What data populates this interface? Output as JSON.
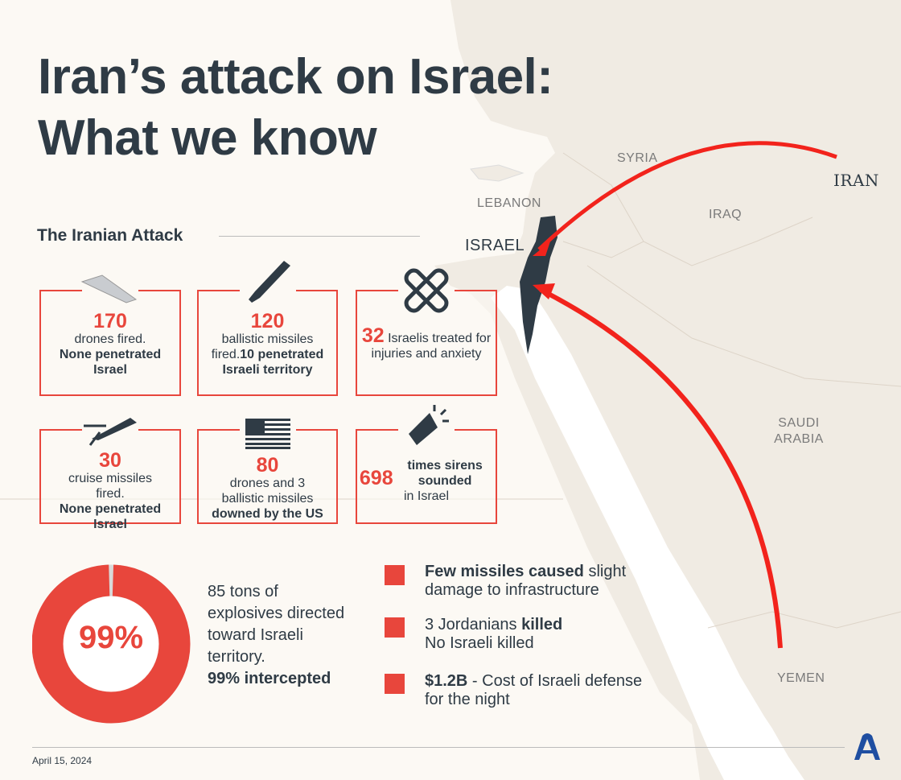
{
  "title": {
    "line1": "Iran’s attack on Israel:",
    "line2": "What we know"
  },
  "section_title": "The Iranian Attack",
  "map_labels": {
    "syria": "SYRIA",
    "lebanon": "LEBANON",
    "israel": "ISRAEL",
    "iraq": "IRAQ",
    "iran": "IRAN",
    "saudi1": "SAUDI",
    "saudi2": "ARABIA",
    "yemen": "YEMEN"
  },
  "cards": [
    {
      "icon": "drone-icon",
      "number": "170",
      "text1": "drones fired.",
      "bold": "None penetrated Israel"
    },
    {
      "icon": "ballistic-missile-icon",
      "number": "120",
      "text1": "ballistic missiles fired.",
      "bold": "10 penetrated Israeli territory"
    },
    {
      "icon": "bandage-icon",
      "number": "32",
      "text1": "Israelis treated for injuries and anxiety"
    },
    {
      "icon": "cruise-missile-icon",
      "number": "30",
      "text1": "cruise missiles fired. ",
      "bold": "None penetrated Israel"
    },
    {
      "icon": "us-flag-icon",
      "number": "80",
      "text1": "drones and 3 ballistic missiles",
      "bold": "downed by the US"
    },
    {
      "icon": "megaphone-icon",
      "number": "698",
      "bold1": "times sirens sounded",
      "text1": "in Israel"
    }
  ],
  "donut": {
    "label": "99%",
    "intercepted_percent": 99,
    "color": "#e8463c",
    "rest_color": "#d9d9d9"
  },
  "explosives": {
    "text": "85 tons of explosives directed toward Israeli territory.",
    "bold": "99% intercepted"
  },
  "bullets": [
    {
      "bold": "Few missiles caused",
      "text": " slight damage to infrastructure"
    },
    {
      "text": "3 Jordanians ",
      "bold": "killed",
      "text2": "No Israeli killed"
    },
    {
      "bold": "$1.2B",
      "text": " - Cost of Israeli defense for the night"
    }
  ],
  "date": "April 15, 2024",
  "logo": "AA",
  "colors": {
    "accent": "#e8463c",
    "dark": "#2f3b45",
    "land": "#f0ebe3",
    "logo": "#1f4ea1"
  }
}
